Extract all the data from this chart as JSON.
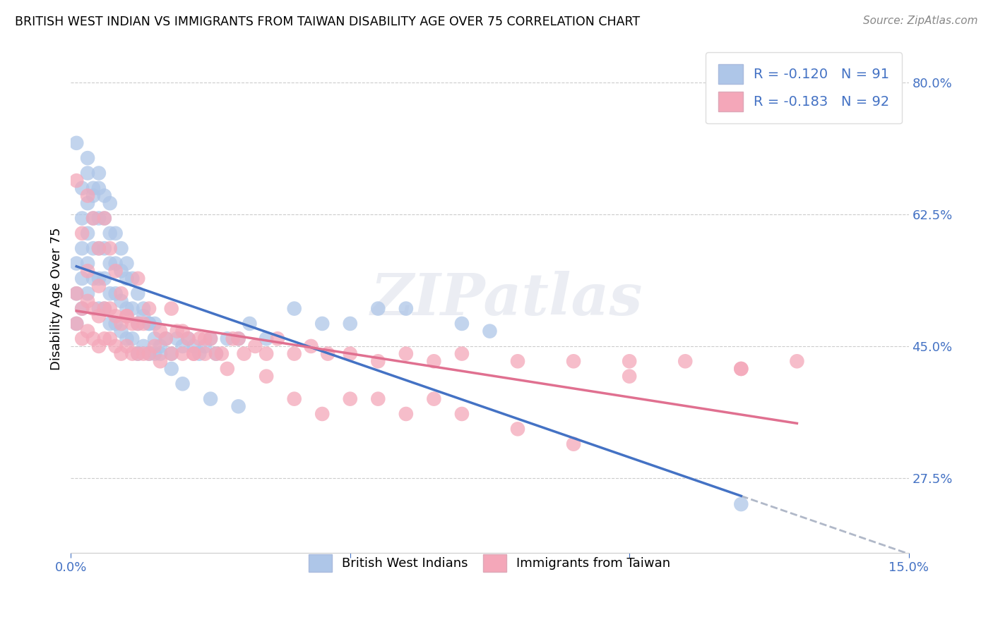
{
  "title": "BRITISH WEST INDIAN VS IMMIGRANTS FROM TAIWAN DISABILITY AGE OVER 75 CORRELATION CHART",
  "source": "Source: ZipAtlas.com",
  "ylabel": "Disability Age Over 75",
  "xlim": [
    0.0,
    0.15
  ],
  "ylim": [
    0.175,
    0.85
  ],
  "xticks": [
    0.0,
    0.05,
    0.1,
    0.15
  ],
  "xticklabels": [
    "0.0%",
    "",
    "",
    "15.0%"
  ],
  "ytick_right_labels": [
    "80.0%",
    "62.5%",
    "45.0%",
    "27.5%"
  ],
  "ytick_right_values": [
    0.8,
    0.625,
    0.45,
    0.275
  ],
  "color_blue": "#aec6e8",
  "color_pink": "#f4a7b9",
  "color_blue_line": "#4472c4",
  "color_pink_line": "#e07090",
  "color_blue_text": "#4472c4",
  "color_gray_dash": "#b0b8c8",
  "legend_label1": "British West Indians",
  "legend_label2": "Immigrants from Taiwan",
  "watermark": "ZIPatlas",
  "blue_x": [
    0.001,
    0.001,
    0.001,
    0.002,
    0.002,
    0.002,
    0.002,
    0.003,
    0.003,
    0.003,
    0.003,
    0.003,
    0.004,
    0.004,
    0.004,
    0.004,
    0.005,
    0.005,
    0.005,
    0.005,
    0.005,
    0.006,
    0.006,
    0.006,
    0.006,
    0.007,
    0.007,
    0.007,
    0.007,
    0.008,
    0.008,
    0.008,
    0.009,
    0.009,
    0.009,
    0.01,
    0.01,
    0.01,
    0.011,
    0.011,
    0.012,
    0.012,
    0.013,
    0.013,
    0.014,
    0.014,
    0.015,
    0.015,
    0.016,
    0.017,
    0.018,
    0.019,
    0.02,
    0.021,
    0.022,
    0.023,
    0.024,
    0.025,
    0.026,
    0.028,
    0.03,
    0.032,
    0.035,
    0.04,
    0.045,
    0.05,
    0.055,
    0.06,
    0.07,
    0.075,
    0.001,
    0.002,
    0.003,
    0.004,
    0.005,
    0.006,
    0.007,
    0.008,
    0.009,
    0.01,
    0.011,
    0.012,
    0.013,
    0.014,
    0.015,
    0.016,
    0.018,
    0.02,
    0.025,
    0.03,
    0.12
  ],
  "blue_y": [
    0.48,
    0.52,
    0.56,
    0.5,
    0.54,
    0.58,
    0.62,
    0.52,
    0.56,
    0.6,
    0.64,
    0.68,
    0.54,
    0.58,
    0.62,
    0.66,
    0.5,
    0.54,
    0.58,
    0.62,
    0.66,
    0.5,
    0.54,
    0.58,
    0.62,
    0.48,
    0.52,
    0.56,
    0.6,
    0.48,
    0.52,
    0.56,
    0.47,
    0.51,
    0.55,
    0.46,
    0.5,
    0.54,
    0.46,
    0.5,
    0.44,
    0.48,
    0.45,
    0.49,
    0.44,
    0.48,
    0.44,
    0.48,
    0.45,
    0.46,
    0.44,
    0.46,
    0.45,
    0.46,
    0.45,
    0.44,
    0.45,
    0.46,
    0.44,
    0.46,
    0.46,
    0.48,
    0.46,
    0.5,
    0.48,
    0.48,
    0.5,
    0.5,
    0.48,
    0.47,
    0.72,
    0.66,
    0.7,
    0.65,
    0.68,
    0.65,
    0.64,
    0.6,
    0.58,
    0.56,
    0.54,
    0.52,
    0.5,
    0.48,
    0.46,
    0.44,
    0.42,
    0.4,
    0.38,
    0.37,
    0.24
  ],
  "pink_x": [
    0.001,
    0.001,
    0.002,
    0.002,
    0.003,
    0.003,
    0.003,
    0.004,
    0.004,
    0.005,
    0.005,
    0.005,
    0.006,
    0.006,
    0.007,
    0.007,
    0.008,
    0.008,
    0.009,
    0.009,
    0.01,
    0.01,
    0.011,
    0.011,
    0.012,
    0.012,
    0.013,
    0.013,
    0.014,
    0.015,
    0.016,
    0.017,
    0.018,
    0.019,
    0.02,
    0.021,
    0.022,
    0.023,
    0.024,
    0.025,
    0.027,
    0.029,
    0.031,
    0.033,
    0.035,
    0.037,
    0.04,
    0.043,
    0.046,
    0.05,
    0.055,
    0.06,
    0.065,
    0.07,
    0.08,
    0.09,
    0.1,
    0.11,
    0.12,
    0.13,
    0.001,
    0.002,
    0.003,
    0.004,
    0.005,
    0.006,
    0.007,
    0.008,
    0.009,
    0.01,
    0.012,
    0.014,
    0.016,
    0.018,
    0.02,
    0.022,
    0.024,
    0.026,
    0.028,
    0.03,
    0.035,
    0.04,
    0.045,
    0.05,
    0.055,
    0.06,
    0.065,
    0.07,
    0.08,
    0.09,
    0.12,
    0.1
  ],
  "pink_y": [
    0.48,
    0.52,
    0.46,
    0.5,
    0.47,
    0.51,
    0.55,
    0.46,
    0.5,
    0.45,
    0.49,
    0.53,
    0.46,
    0.5,
    0.46,
    0.5,
    0.45,
    0.49,
    0.44,
    0.48,
    0.45,
    0.49,
    0.44,
    0.48,
    0.44,
    0.48,
    0.44,
    0.48,
    0.44,
    0.45,
    0.43,
    0.46,
    0.44,
    0.47,
    0.44,
    0.46,
    0.44,
    0.46,
    0.44,
    0.46,
    0.44,
    0.46,
    0.44,
    0.45,
    0.44,
    0.46,
    0.44,
    0.45,
    0.44,
    0.44,
    0.43,
    0.44,
    0.43,
    0.44,
    0.43,
    0.43,
    0.43,
    0.43,
    0.42,
    0.43,
    0.67,
    0.6,
    0.65,
    0.62,
    0.58,
    0.62,
    0.58,
    0.55,
    0.52,
    0.49,
    0.54,
    0.5,
    0.47,
    0.5,
    0.47,
    0.44,
    0.46,
    0.44,
    0.42,
    0.46,
    0.41,
    0.38,
    0.36,
    0.38,
    0.38,
    0.36,
    0.38,
    0.36,
    0.34,
    0.32,
    0.42,
    0.41
  ]
}
